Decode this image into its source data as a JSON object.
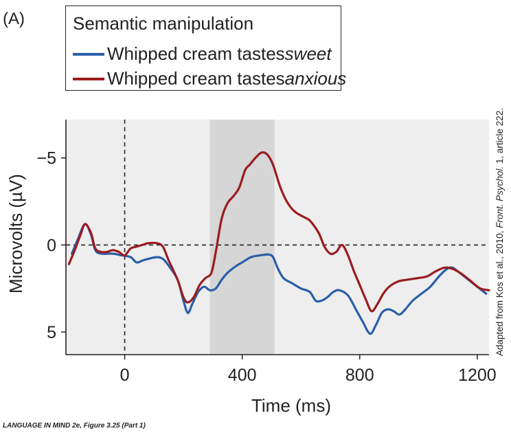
{
  "panel_label": "(A)",
  "legend": {
    "title": "Semantic manipulation",
    "entries": [
      {
        "prefix": "Whipped cream tastes ",
        "emphasis": "sweet",
        "color": "#2a5ea8"
      },
      {
        "prefix": "Whipped cream tastes ",
        "emphasis": "anxious",
        "color": "#9b1b20"
      }
    ]
  },
  "credit": {
    "part1": "Adapted from Kos et al., 2010, ",
    "journal": "Front. Psychol.",
    "part2": " 1, article 222."
  },
  "footer": "LANGUAGE IN MIND 2e, Figure 3.25 (Part 1)",
  "colors": {
    "plot_bg": "#eeeeee",
    "highlight": "#d6d6d6",
    "axis": "#231f20"
  },
  "chart_data": {
    "type": "line",
    "xlabel": "Time (ms)",
    "ylabel": "Microvolts (µV)",
    "xlim": [
      -200,
      1240
    ],
    "ylim": [
      -7.2,
      6.3
    ],
    "y_inverted": true,
    "xticks": [
      0,
      400,
      800,
      1200
    ],
    "xtick_labels": [
      "0",
      "400",
      "800",
      "1200"
    ],
    "yticks": [
      -5,
      0,
      5
    ],
    "ytick_labels": [
      "−5",
      "0",
      "5"
    ],
    "highlight_x": [
      290,
      510
    ],
    "vline_x": 0,
    "hline_y": 0,
    "series": [
      {
        "name": "sweet",
        "color": "#2a5ea8",
        "points": [
          [
            -180,
            0.5
          ],
          [
            -160,
            -0.3
          ],
          [
            -135,
            -1.2
          ],
          [
            -115,
            -0.6
          ],
          [
            -100,
            0.3
          ],
          [
            -80,
            0.5
          ],
          [
            -40,
            0.5
          ],
          [
            -10,
            0.6
          ],
          [
            20,
            0.7
          ],
          [
            40,
            1.0
          ],
          [
            60,
            0.9
          ],
          [
            80,
            0.8
          ],
          [
            110,
            0.7
          ],
          [
            130,
            0.8
          ],
          [
            150,
            1.2
          ],
          [
            180,
            2.0
          ],
          [
            200,
            3.2
          ],
          [
            215,
            3.9
          ],
          [
            230,
            3.4
          ],
          [
            250,
            2.7
          ],
          [
            270,
            2.4
          ],
          [
            290,
            2.6
          ],
          [
            310,
            2.5
          ],
          [
            330,
            2.0
          ],
          [
            350,
            1.6
          ],
          [
            380,
            1.2
          ],
          [
            400,
            1.0
          ],
          [
            430,
            0.7
          ],
          [
            460,
            0.6
          ],
          [
            490,
            0.55
          ],
          [
            505,
            0.7
          ],
          [
            520,
            1.3
          ],
          [
            540,
            1.9
          ],
          [
            570,
            2.2
          ],
          [
            600,
            2.5
          ],
          [
            630,
            2.7
          ],
          [
            650,
            3.2
          ],
          [
            670,
            3.2
          ],
          [
            690,
            3.0
          ],
          [
            710,
            2.7
          ],
          [
            730,
            2.6
          ],
          [
            760,
            2.9
          ],
          [
            790,
            3.8
          ],
          [
            810,
            4.4
          ],
          [
            835,
            5.1
          ],
          [
            855,
            4.6
          ],
          [
            875,
            3.9
          ],
          [
            895,
            3.7
          ],
          [
            915,
            3.8
          ],
          [
            935,
            4.0
          ],
          [
            955,
            3.7
          ],
          [
            980,
            3.2
          ],
          [
            1010,
            2.8
          ],
          [
            1040,
            2.4
          ],
          [
            1070,
            1.8
          ],
          [
            1095,
            1.4
          ],
          [
            1115,
            1.3
          ],
          [
            1140,
            1.6
          ],
          [
            1170,
            2.0
          ],
          [
            1200,
            2.4
          ],
          [
            1230,
            2.8
          ]
        ]
      },
      {
        "name": "anxious",
        "color": "#9b1b20",
        "points": [
          [
            -190,
            1.1
          ],
          [
            -170,
            0.3
          ],
          [
            -150,
            -0.6
          ],
          [
            -135,
            -1.2
          ],
          [
            -115,
            -0.7
          ],
          [
            -100,
            0.2
          ],
          [
            -80,
            0.4
          ],
          [
            -60,
            0.4
          ],
          [
            -40,
            0.3
          ],
          [
            -20,
            0.4
          ],
          [
            0,
            0.6
          ],
          [
            20,
            0.2
          ],
          [
            40,
            0.1
          ],
          [
            60,
            0.0
          ],
          [
            80,
            -0.1
          ],
          [
            110,
            -0.1
          ],
          [
            130,
            0.1
          ],
          [
            150,
            0.9
          ],
          [
            180,
            2.0
          ],
          [
            200,
            3.0
          ],
          [
            215,
            3.3
          ],
          [
            235,
            3.0
          ],
          [
            255,
            2.3
          ],
          [
            275,
            1.9
          ],
          [
            295,
            1.6
          ],
          [
            310,
            0.4
          ],
          [
            330,
            -1.5
          ],
          [
            350,
            -2.4
          ],
          [
            370,
            -2.8
          ],
          [
            390,
            -3.3
          ],
          [
            410,
            -4.3
          ],
          [
            425,
            -4.6
          ],
          [
            445,
            -5.0
          ],
          [
            465,
            -5.3
          ],
          [
            485,
            -5.2
          ],
          [
            505,
            -4.6
          ],
          [
            530,
            -3.3
          ],
          [
            555,
            -2.4
          ],
          [
            580,
            -1.9
          ],
          [
            610,
            -1.6
          ],
          [
            630,
            -1.4
          ],
          [
            660,
            -0.7
          ],
          [
            680,
            0.1
          ],
          [
            700,
            0.5
          ],
          [
            720,
            0.4
          ],
          [
            740,
            0.0
          ],
          [
            760,
            0.6
          ],
          [
            780,
            1.5
          ],
          [
            800,
            2.3
          ],
          [
            820,
            3.1
          ],
          [
            840,
            3.8
          ],
          [
            860,
            3.4
          ],
          [
            880,
            2.8
          ],
          [
            900,
            2.4
          ],
          [
            930,
            2.1
          ],
          [
            960,
            2.0
          ],
          [
            1000,
            1.9
          ],
          [
            1030,
            1.8
          ],
          [
            1060,
            1.5
          ],
          [
            1090,
            1.3
          ],
          [
            1120,
            1.4
          ],
          [
            1150,
            1.7
          ],
          [
            1180,
            2.1
          ],
          [
            1210,
            2.5
          ],
          [
            1240,
            2.6
          ]
        ]
      }
    ]
  }
}
